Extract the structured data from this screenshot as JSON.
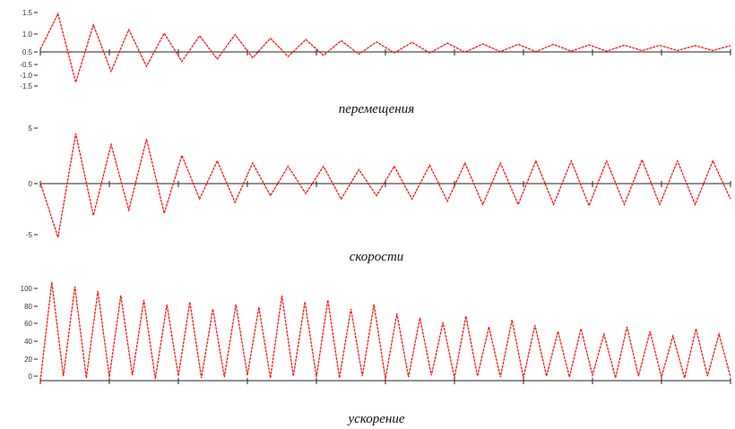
{
  "colors": {
    "signal": "#ff0000",
    "axis": "#222222"
  },
  "chart_data": [
    {
      "type": "line",
      "caption": "перемещения",
      "title": "",
      "xlabel": "",
      "ylabel": "",
      "xlim": [
        0,
        10
      ],
      "ylim": [
        -1.5,
        1.5
      ],
      "y_tick_labels": [
        "1.5",
        "1.0",
        "0.5",
        "-0.5",
        "-1.0",
        "-1.5"
      ],
      "series": [
        {
          "values": [
            0.0,
            1.45,
            -1.35,
            1.0,
            -0.9,
            0.8,
            -0.7,
            0.65,
            -0.5,
            0.55,
            -0.4,
            0.6,
            -0.35,
            0.45,
            -0.3,
            0.4,
            -0.25,
            0.35,
            -0.2,
            0.3,
            -0.15,
            0.28,
            -0.15,
            0.25,
            -0.12,
            0.22,
            -0.1,
            0.2,
            -0.1,
            0.2,
            -0.08,
            0.18,
            -0.08,
            0.17,
            -0.06,
            0.16,
            -0.05,
            0.15,
            -0.05,
            0.15
          ]
        }
      ]
    },
    {
      "type": "line",
      "caption": "скорости",
      "title": "",
      "xlabel": "",
      "ylabel": "",
      "xlim": [
        0,
        10
      ],
      "ylim": [
        -5,
        5
      ],
      "y_tick_labels": [
        "5",
        "0",
        "-5"
      ],
      "series": [
        {
          "values": [
            0.0,
            -5.0,
            4.5,
            -3.0,
            3.5,
            -2.5,
            4.0,
            -2.8,
            2.5,
            -1.5,
            2.0,
            -1.8,
            1.8,
            -1.2,
            1.5,
            -1.0,
            1.5,
            -1.5,
            1.2,
            -1.2,
            1.5,
            -1.5,
            1.6,
            -1.7,
            1.8,
            -2.0,
            1.8,
            -2.0,
            2.0,
            -2.0,
            2.0,
            -2.1,
            2.0,
            -2.0,
            2.1,
            -2.0,
            2.0,
            -2.0,
            2.0,
            -1.5
          ]
        }
      ]
    },
    {
      "type": "line",
      "caption": "ускорение",
      "title": "",
      "xlabel": "",
      "ylabel": "",
      "xlim": [
        0,
        10
      ],
      "ylim": [
        0,
        120
      ],
      "y_tick_labels": [
        "100",
        "80",
        "60",
        "40",
        "20",
        "0"
      ],
      "series": [
        {
          "values": [
            0,
            110,
            5,
            105,
            3,
            100,
            4,
            95,
            6,
            90,
            2,
            85,
            5,
            88,
            3,
            80,
            4,
            85,
            6,
            82,
            3,
            95,
            5,
            88,
            4,
            90,
            3,
            80,
            5,
            85,
            2,
            75,
            4,
            70,
            6,
            65,
            3,
            72,
            5,
            60,
            4,
            68,
            3,
            62,
            5,
            55,
            4,
            58,
            6,
            52,
            3,
            60,
            5,
            55,
            4,
            50,
            3,
            58,
            5,
            52,
            4
          ]
        }
      ]
    }
  ]
}
